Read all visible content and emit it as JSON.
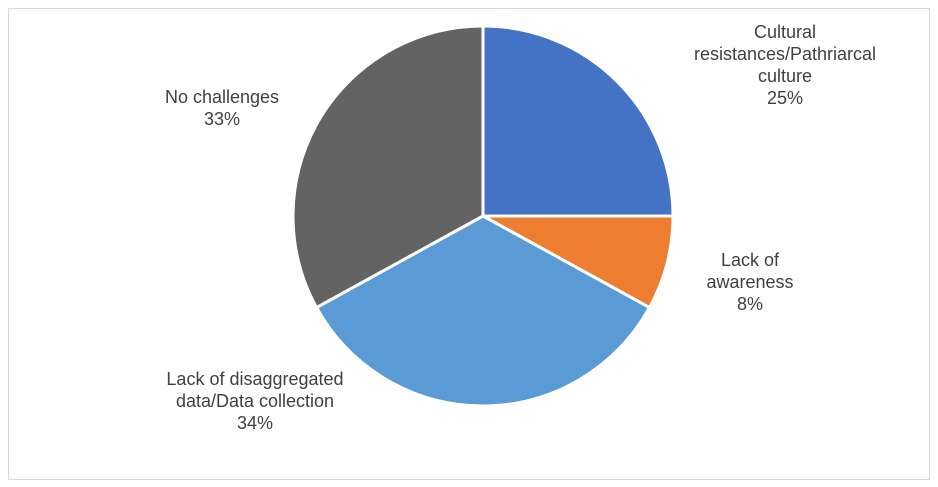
{
  "chart_data": {
    "type": "pie",
    "title": "",
    "slices": [
      {
        "label": [
          "Cultural",
          "resistances/Pathriarcal",
          "culture"
        ],
        "percent_label": "25%",
        "value": 25,
        "color": "#4472c4"
      },
      {
        "label": [
          "Lack of",
          "awareness"
        ],
        "percent_label": "8%",
        "value": 8,
        "color": "#ed7d31"
      },
      {
        "label": [
          "Lack of disaggregated",
          "data/Data collection"
        ],
        "percent_label": "34%",
        "value": 34,
        "color": "#5b9bd5"
      },
      {
        "label": [
          "No challenges"
        ],
        "percent_label": "33%",
        "value": 33,
        "color": "#636363"
      }
    ]
  }
}
